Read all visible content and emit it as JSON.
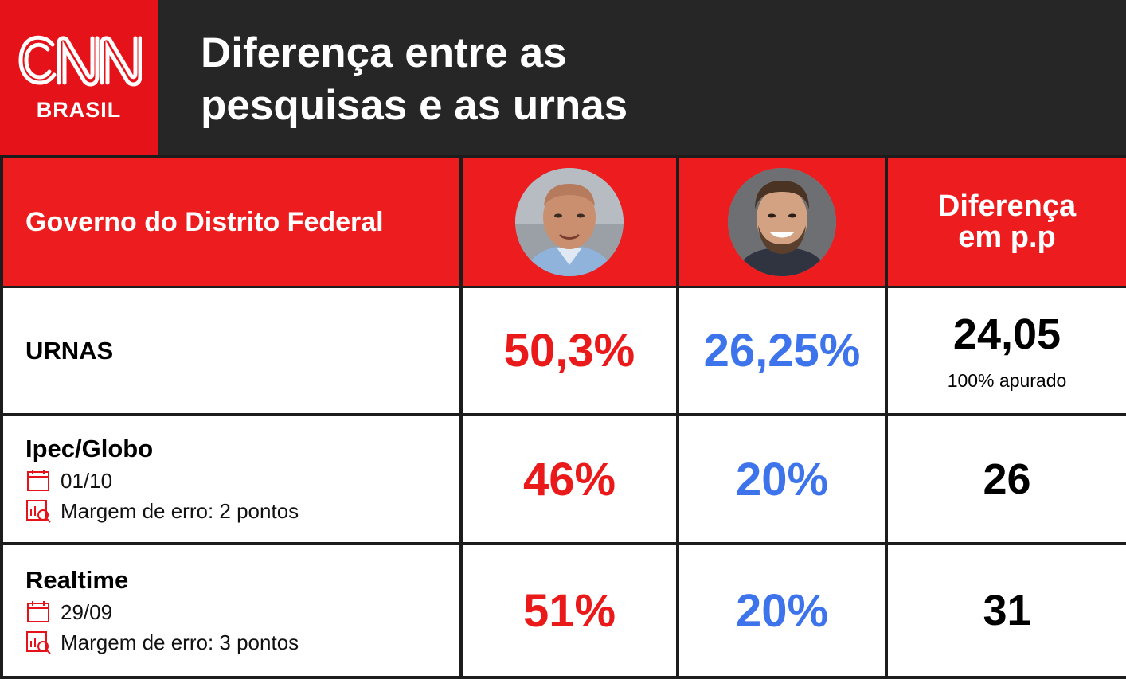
{
  "header": {
    "logo_main": "CNN",
    "logo_sub": "BRASIL",
    "title_line1": "Diferença entre as",
    "title_line2": "pesquisas e as urnas"
  },
  "table": {
    "header_label": "Governo do Distrito Federal",
    "diff_header_line1": "Diferença",
    "diff_header_line2": "em p.p",
    "candidate_1_color": "#ea1a1b",
    "candidate_2_color": "#3d74ec",
    "rows": [
      {
        "title": "URNAS",
        "date": "",
        "margin": "",
        "c1": "50,3%",
        "c2": "26,25%",
        "diff": "24,05",
        "note": "100% apurado"
      },
      {
        "title": "Ipec/Globo",
        "date": "01/10",
        "margin": "Margem de erro: 2 pontos",
        "c1": "46%",
        "c2": "20%",
        "diff": "26",
        "note": ""
      },
      {
        "title": "Realtime",
        "date": "29/09",
        "margin": "Margem de erro: 3 pontos",
        "c1": "51%",
        "c2": "20%",
        "diff": "31",
        "note": ""
      }
    ],
    "icons": {
      "date": "calendar-icon",
      "margin": "chart-search-icon"
    }
  }
}
